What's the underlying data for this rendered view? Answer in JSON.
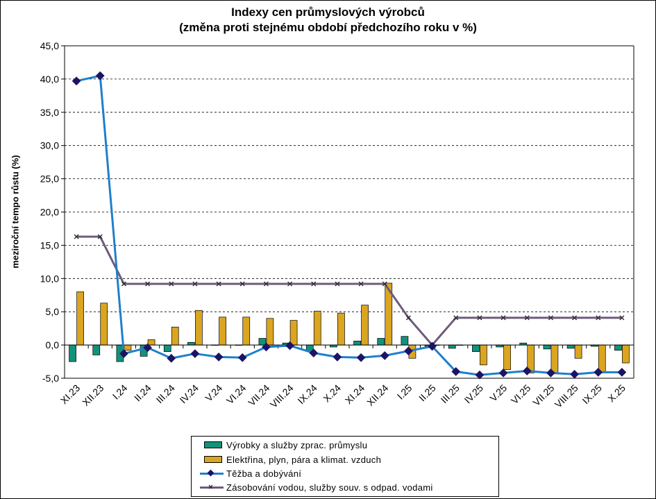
{
  "chart_data": {
    "type": "bar+line",
    "title_line1": "Indexy cen průmyslových výrobců",
    "title_line2": "(změna proti stejnému období předchozího roku v %)",
    "ylabel": "meziroční tempo růstu (%)",
    "ylim": [
      -5,
      45
    ],
    "yticks": [
      "-5,0",
      "0,0",
      "5,0",
      "10,0",
      "15,0",
      "20,0",
      "25,0",
      "30,0",
      "35,0",
      "40,0",
      "45,0"
    ],
    "grid": "horizontal dashed",
    "legend_position": "bottom",
    "categories": [
      "XI.23",
      "XII.23",
      "I.24",
      "II.24",
      "III.24",
      "IV.24",
      "V.24",
      "VI.24",
      "VII.24",
      "VIII.24",
      "IX.24",
      "X.24",
      "XI.24",
      "XII.24",
      "I.25",
      "II.25",
      "III.25",
      "IV.25",
      "V.25",
      "VI.25",
      "VII.25",
      "VIII.25",
      "IX.25",
      "X.25"
    ],
    "series": [
      {
        "name": "Výrobky a služby zprac. průmyslu",
        "kind": "bar",
        "color": "#10937a",
        "values": [
          -2.5,
          -1.5,
          -2.5,
          -1.7,
          -1.0,
          0.4,
          0.0,
          0.0,
          1.0,
          0.3,
          -1.0,
          -0.3,
          0.6,
          1.0,
          1.3,
          -0.2,
          -0.5,
          -1.0,
          -0.3,
          0.3,
          -0.6,
          -0.5,
          -0.2,
          -0.8
        ]
      },
      {
        "name": "Elektřina, plyn, pára a klimat. vzduch",
        "kind": "bar",
        "color": "#daa520",
        "values": [
          8.0,
          6.3,
          -0.8,
          0.8,
          2.7,
          5.2,
          4.2,
          4.2,
          4.0,
          3.7,
          5.1,
          4.8,
          6.0,
          9.3,
          -2.0,
          0.0,
          0.0,
          -3.0,
          -3.7,
          -4.2,
          -4.3,
          -2.0,
          -4.0,
          -2.7
        ]
      },
      {
        "name": "Těžba a dobývání",
        "kind": "line",
        "color": "#1e7fcb",
        "marker_color": "#1b1464",
        "values": [
          39.7,
          40.5,
          -1.3,
          -0.4,
          -2.0,
          -1.3,
          -1.8,
          -1.9,
          -0.3,
          -0.1,
          -1.2,
          -1.8,
          -1.9,
          -1.6,
          -0.9,
          -0.2,
          -4.0,
          -4.5,
          -4.2,
          -3.9,
          -4.2,
          -4.4,
          -4.1,
          -4.1
        ]
      },
      {
        "name": "Zásobování vodou, služby souv. s odpad. vodami",
        "kind": "line",
        "color": "#6e5a7e",
        "marker_color": "#2b2b2b",
        "values": [
          16.3,
          16.3,
          9.2,
          9.2,
          9.2,
          9.2,
          9.2,
          9.2,
          9.2,
          9.2,
          9.2,
          9.2,
          9.2,
          9.2,
          4.1,
          0.0,
          4.1,
          4.1,
          4.1,
          4.1,
          4.1,
          4.1,
          4.1,
          4.1
        ]
      }
    ]
  }
}
